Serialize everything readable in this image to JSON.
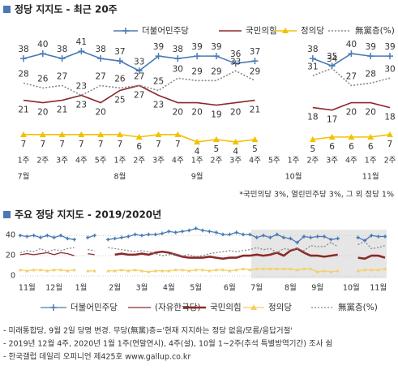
{
  "chart_data": [
    {
      "type": "line",
      "title": "정당 지지도 - 최근 20주",
      "categories": [
        "1주",
        "2주",
        "3주",
        "4주",
        "5주",
        "1주",
        "2주",
        "3주",
        "4주",
        "1주",
        "2주",
        "3주",
        "4주",
        "5주",
        "1주",
        "2주",
        "3주",
        "4주",
        "1주",
        "2주"
      ],
      "month_labels": [
        "7월",
        null,
        null,
        null,
        null,
        "8월",
        null,
        null,
        null,
        "9월",
        null,
        null,
        null,
        null,
        "10월",
        null,
        null,
        null,
        "11월",
        null
      ],
      "ylim": [
        0,
        45
      ],
      "series": [
        {
          "name": "더불어민주당",
          "color": "#4a7ab5",
          "marker": "plus",
          "values": [
            38,
            40,
            38,
            41,
            38,
            37,
            33,
            39,
            38,
            39,
            39,
            36,
            37,
            null,
            null,
            38,
            35,
            40,
            39,
            39
          ]
        },
        {
          "name": "국민의힘",
          "color": "#8b2a2a",
          "values": [
            21,
            20,
            21,
            23,
            20,
            25,
            27,
            23,
            20,
            20,
            19,
            20,
            21,
            null,
            null,
            18,
            17,
            20,
            20,
            18
          ]
        },
        {
          "name": "정의당",
          "color": "#f2c200",
          "marker": "triangle",
          "values": [
            7,
            7,
            7,
            7,
            7,
            7,
            6,
            7,
            7,
            4,
            5,
            4,
            5,
            null,
            null,
            5,
            6,
            6,
            6,
            7
          ]
        },
        {
          "name": "無黨층(%)",
          "color": "#888888",
          "dash": "dotted",
          "values": [
            28,
            26,
            27,
            23,
            27,
            26,
            27,
            25,
            30,
            29,
            29,
            33,
            29,
            null,
            null,
            31,
            34,
            27,
            28,
            30
          ]
        }
      ],
      "note": "*국민의당 3%, 열린민주당 3%, 그 외 정당 1%"
    },
    {
      "type": "line",
      "title": "주요 정당 지지도 - 2019/2020년",
      "categories": [
        null,
        "11월",
        null,
        null,
        null,
        "12월",
        null,
        null,
        null,
        "1월",
        null,
        null,
        null,
        null,
        "2월",
        null,
        null,
        null,
        "3월",
        null,
        null,
        null,
        "4월",
        null,
        null,
        null,
        "5월",
        null,
        null,
        null,
        null,
        "6월",
        null,
        null,
        null,
        "7월",
        null,
        null,
        null,
        null,
        "8월",
        null,
        null,
        null,
        "9월",
        null,
        null,
        null,
        null,
        "10월",
        null,
        null,
        null,
        "11월",
        null
      ],
      "ylim": [
        0,
        45
      ],
      "yticks": [
        0,
        20,
        40
      ],
      "series": [
        {
          "name": "더불어민주당",
          "color": "#4a7ab5",
          "marker": "plus",
          "values": [
            40,
            39,
            40,
            38,
            40,
            38,
            40,
            37,
            36,
            null,
            38,
            40,
            null,
            36,
            37,
            38,
            39,
            41,
            40,
            41,
            41,
            42,
            44,
            43,
            44,
            45,
            47,
            45,
            44,
            43,
            41,
            41,
            43,
            41,
            41,
            38,
            40,
            38,
            41,
            38,
            37,
            33,
            39,
            38,
            39,
            39,
            36,
            37,
            null,
            null,
            38,
            35,
            40,
            39,
            39
          ]
        },
        {
          "name": "(자유한국당)",
          "color": "#8b2a2a",
          "values": [
            21,
            22,
            21,
            22,
            23,
            21,
            23,
            22,
            20,
            null,
            22,
            21,
            null,
            21,
            null,
            null,
            null,
            null,
            null,
            null,
            null,
            null,
            null,
            null,
            null,
            null,
            null,
            null,
            null,
            null,
            null,
            null,
            null,
            null,
            null,
            null,
            null,
            null,
            null,
            null,
            null,
            null,
            null,
            null,
            null,
            null,
            null,
            null,
            null,
            null,
            null,
            null,
            null,
            null,
            null
          ]
        },
        {
          "name": "국민의힘",
          "color": "#8b2a2a",
          "thick": true,
          "values": [
            null,
            null,
            null,
            null,
            null,
            null,
            null,
            null,
            null,
            null,
            null,
            null,
            null,
            null,
            21,
            22,
            21,
            21,
            22,
            21,
            23,
            24,
            23,
            21,
            19,
            18,
            18,
            18,
            19,
            18,
            17,
            18,
            18,
            20,
            20,
            21,
            20,
            21,
            23,
            20,
            25,
            27,
            23,
            20,
            20,
            19,
            20,
            21,
            null,
            null,
            18,
            17,
            20,
            20,
            18
          ]
        },
        {
          "name": "정의당",
          "color": "#f5cf66",
          "marker": "triangle",
          "values": [
            6,
            5,
            6,
            6,
            5,
            6,
            6,
            5,
            6,
            null,
            5,
            5,
            null,
            5,
            5,
            6,
            5,
            6,
            5,
            4,
            5,
            5,
            5,
            6,
            6,
            5,
            6,
            6,
            5,
            6,
            6,
            5,
            6,
            7,
            6,
            7,
            7,
            7,
            7,
            7,
            7,
            6,
            7,
            7,
            4,
            5,
            4,
            5,
            null,
            null,
            5,
            6,
            6,
            6,
            7
          ]
        },
        {
          "name": "無黨층(%)",
          "color": "#888888",
          "dash": "dotted",
          "values": [
            23,
            25,
            24,
            27,
            24,
            26,
            25,
            27,
            28,
            null,
            26,
            25,
            null,
            28,
            27,
            26,
            25,
            24,
            25,
            24,
            22,
            20,
            21,
            22,
            20,
            21,
            19,
            20,
            22,
            23,
            24,
            25,
            24,
            25,
            26,
            28,
            26,
            27,
            23,
            27,
            26,
            27,
            25,
            30,
            29,
            29,
            33,
            29,
            null,
            null,
            31,
            34,
            27,
            28,
            30
          ]
        }
      ],
      "notes": [
        "- 미래통합당, 9월 2일 당명 변경. 무당(無黨)층='현재 지지하는 정당 없음/모름/응답거절'",
        "- 2019년 12월 4주, 2020년 1월 1주(연말연시), 4주(설), 10월 1~2주(추석 특별방역기간) 조사 쉼",
        "- 한국갤럽 데일리 오피니언 제425호 www.gallup.co.kr"
      ]
    }
  ]
}
